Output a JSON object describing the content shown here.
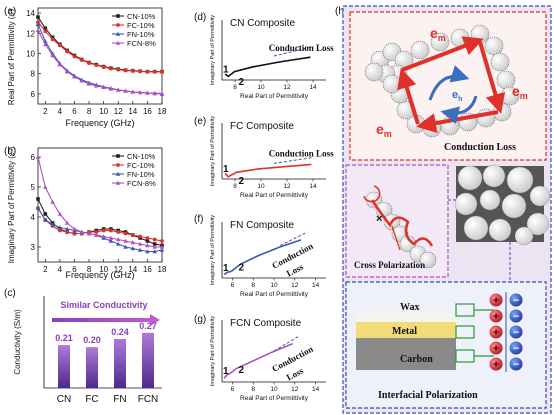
{
  "chart_data": [
    {
      "type": "line",
      "panel_label": "(a)",
      "xlabel": "Frequency (GHz)",
      "ylabel": "Real Part of Permittivity (ε')",
      "xlim": [
        1,
        18
      ],
      "ylim": [
        5,
        14.5
      ],
      "xticks": [
        2,
        4,
        6,
        8,
        10,
        12,
        14,
        16,
        18
      ],
      "yticks": [
        6,
        8,
        10,
        12,
        14
      ],
      "legend_position": "top-right",
      "x": [
        1,
        2,
        3,
        4,
        5,
        6,
        7,
        8,
        9,
        10,
        11,
        12,
        13,
        14,
        15,
        16,
        17,
        18
      ],
      "series": [
        {
          "name": "CN-10%",
          "color": "#222222",
          "marker": "square",
          "values": [
            13.6,
            12.5,
            11.6,
            10.9,
            10.3,
            9.8,
            9.4,
            9.1,
            8.9,
            8.7,
            8.55,
            8.45,
            8.35,
            8.3,
            8.25,
            8.2,
            8.2,
            8.2
          ]
        },
        {
          "name": "FC-10%",
          "color": "#e0302a",
          "marker": "circle",
          "values": [
            13.1,
            12.2,
            11.4,
            10.8,
            10.2,
            9.7,
            9.35,
            9.05,
            8.85,
            8.65,
            8.5,
            8.4,
            8.32,
            8.27,
            8.22,
            8.2,
            8.18,
            8.18
          ]
        },
        {
          "name": "FN-10%",
          "color": "#3a58b0",
          "marker": "triangle",
          "values": [
            12.9,
            11.2,
            10.0,
            9.0,
            8.3,
            7.8,
            7.4,
            7.1,
            6.9,
            6.7,
            6.55,
            6.4,
            6.3,
            6.2,
            6.15,
            6.1,
            6.05,
            6.0
          ]
        },
        {
          "name": "FCN-8%",
          "color": "#b050c0",
          "marker": "triangle",
          "values": [
            12.3,
            10.9,
            9.8,
            8.9,
            8.2,
            7.7,
            7.3,
            7.0,
            6.8,
            6.65,
            6.5,
            6.4,
            6.3,
            6.2,
            6.15,
            6.1,
            6.08,
            6.05
          ]
        }
      ]
    },
    {
      "type": "line",
      "panel_label": "(b)",
      "xlabel": "Frequency (GHz)",
      "ylabel": "Imaginary Part of Permittivity (ε'')",
      "xlim": [
        1,
        18
      ],
      "ylim": [
        2.5,
        6.3
      ],
      "xticks": [
        2,
        4,
        6,
        8,
        10,
        12,
        14,
        16,
        18
      ],
      "yticks": [
        3,
        4,
        5,
        6
      ],
      "legend_position": "top-right",
      "x": [
        1,
        2,
        3,
        4,
        5,
        6,
        7,
        8,
        9,
        10,
        11,
        12,
        13,
        14,
        15,
        16,
        17,
        18
      ],
      "series": [
        {
          "name": "CN-10%",
          "color": "#222222",
          "marker": "square",
          "values": [
            4.6,
            4.1,
            3.8,
            3.6,
            3.5,
            3.45,
            3.45,
            3.5,
            3.55,
            3.6,
            3.6,
            3.55,
            3.5,
            3.4,
            3.3,
            3.2,
            3.1,
            3.05
          ]
        },
        {
          "name": "FC-10%",
          "color": "#e0302a",
          "marker": "circle",
          "values": [
            4.3,
            3.9,
            3.7,
            3.55,
            3.5,
            3.45,
            3.45,
            3.5,
            3.5,
            3.55,
            3.55,
            3.5,
            3.45,
            3.4,
            3.35,
            3.3,
            3.25,
            3.2
          ]
        },
        {
          "name": "FN-10%",
          "color": "#3a58b0",
          "marker": "triangle",
          "values": [
            4.3,
            3.9,
            3.75,
            3.65,
            3.6,
            3.55,
            3.5,
            3.45,
            3.4,
            3.3,
            3.2,
            3.1,
            3.0,
            2.95,
            2.9,
            2.85,
            2.85,
            2.9
          ]
        },
        {
          "name": "FCN-8%",
          "color": "#b050c0",
          "marker": "triangle",
          "values": [
            6.0,
            5.0,
            4.5,
            4.1,
            3.8,
            3.6,
            3.5,
            3.45,
            3.4,
            3.35,
            3.3,
            3.25,
            3.2,
            3.15,
            3.1,
            3.05,
            3.0,
            3.0
          ]
        }
      ]
    },
    {
      "type": "bar",
      "panel_label": "(c)",
      "ylabel": "Conductivity (S/m)",
      "categories": [
        "CN",
        "FC",
        "FN",
        "FCN"
      ],
      "values": [
        0.21,
        0.2,
        0.24,
        0.27
      ],
      "value_labels": [
        "0.21",
        "0.20",
        "0.24",
        "0.27"
      ],
      "ylim": [
        0,
        0.45
      ],
      "annotation": "Similar Conductivity",
      "color": "#a460c8"
    },
    {
      "type": "line",
      "panel_label": "(d)",
      "title": "CN Composite",
      "xlabel": "Real Part of Permittivity",
      "ylabel": "Imaginary Part of Permittivity",
      "xlim": [
        7,
        15
      ],
      "xticks": [
        8,
        10,
        12,
        14
      ],
      "annotation": "Conduction Loss",
      "region_labels": [
        "1",
        "2"
      ],
      "color": "#111111"
    },
    {
      "type": "line",
      "panel_label": "(e)",
      "title": "FC Composite",
      "xlabel": "Real Part of Permittivity",
      "ylabel": "Imaginary Part of Permittivity",
      "xlim": [
        7,
        15
      ],
      "xticks": [
        8,
        10,
        12,
        14
      ],
      "annotation": "Conduction Loss",
      "region_labels": [
        "1",
        "2"
      ],
      "color": "#e0302a"
    },
    {
      "type": "line",
      "panel_label": "(f)",
      "title": "FN Composite",
      "xlabel": "Real Part of Permittivity",
      "ylabel": "Imaginary Part of Permittivity",
      "xlim": [
        5,
        15
      ],
      "xticks": [
        6,
        8,
        10,
        12,
        14
      ],
      "annotation": [
        "Conduction",
        "Loss"
      ],
      "region_labels": [
        "1",
        "2"
      ],
      "color": "#3a58b0"
    },
    {
      "type": "line",
      "panel_label": "(g)",
      "title": "FCN Composite",
      "xlabel": "Real Part of Permittivity",
      "ylabel": "Imaginary Part of Permittivity",
      "xlim": [
        5,
        15
      ],
      "xticks": [
        6,
        8,
        10,
        12,
        14
      ],
      "annotation": [
        "Conduction",
        "Loss"
      ],
      "region_labels": [
        "1",
        "2"
      ],
      "color": "#b050c0"
    }
  ],
  "schematic": {
    "panel_label": "(h)",
    "em_label": "e",
    "em_sub": "m",
    "eh_label": "e",
    "eh_sub": "h",
    "conduction_loss": "Conduction Loss",
    "cross_polarization": "Cross Polarization",
    "interfacial_polarization": "Interfacial  Polarization",
    "layers": [
      "Wax",
      "Metal",
      "Carbon"
    ],
    "charges_pos": "+",
    "charges_neg": "−",
    "cross_mark": "×"
  }
}
